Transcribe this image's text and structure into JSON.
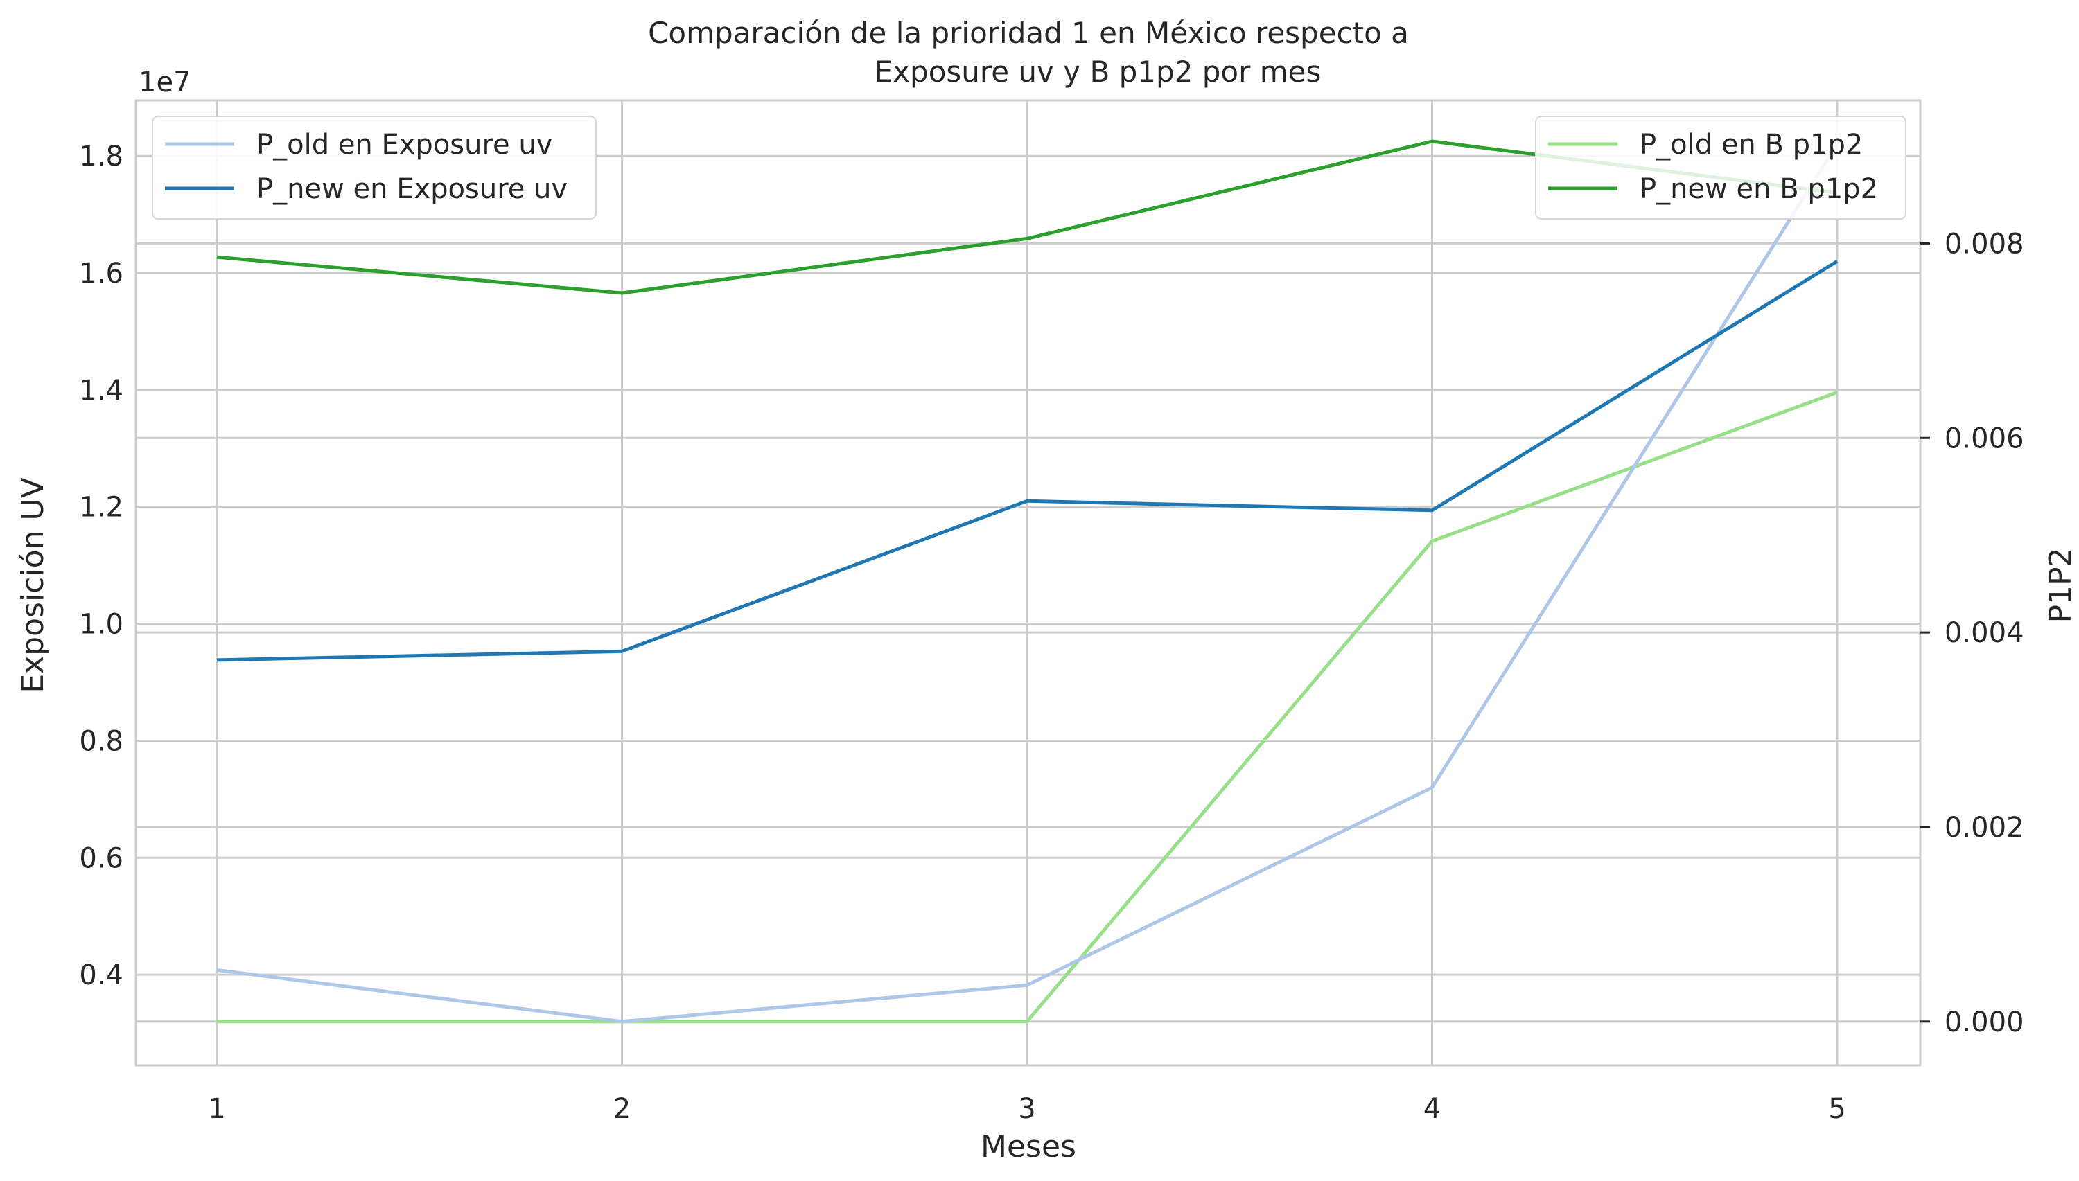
{
  "chart_data": {
    "type": "line",
    "title_line1": "Comparación de la prioridad 1 en México respecto a",
    "title_line2": "Exposure uv y B p1p2 por mes",
    "xlabel": "Meses",
    "ylabel_left": "Exposición UV",
    "ylabel_right": "P1P2",
    "left_offset_label": "1e7",
    "x": [
      1,
      2,
      3,
      4,
      5
    ],
    "x_ticks": [
      "1",
      "2",
      "3",
      "4",
      "5"
    ],
    "ylim_left": [
      2.45,
      18.95
    ],
    "ylim_right": [
      -0.00045,
      0.00947
    ],
    "left_ticks": [
      {
        "v": 0.4,
        "label": "0.4"
      },
      {
        "v": 0.6,
        "label": "0.6"
      },
      {
        "v": 0.8,
        "label": "0.8"
      },
      {
        "v": 1.0,
        "label": "1.0"
      },
      {
        "v": 1.2,
        "label": "1.2"
      },
      {
        "v": 1.4,
        "label": "1.4"
      },
      {
        "v": 1.6,
        "label": "1.6"
      },
      {
        "v": 1.8,
        "label": "1.8"
      }
    ],
    "right_ticks": [
      {
        "v": 0.0,
        "label": "0.000"
      },
      {
        "v": 0.002,
        "label": "0.002"
      },
      {
        "v": 0.004,
        "label": "0.004"
      },
      {
        "v": 0.006,
        "label": "0.006"
      },
      {
        "v": 0.008,
        "label": "0.008"
      }
    ],
    "series_left": [
      {
        "name": "P_old en Exposure uv",
        "color": "#aec7e8",
        "values": [
          4.08,
          3.2,
          3.82,
          7.2,
          18.2
        ]
      },
      {
        "name": "P_new en Exposure uv",
        "color": "#1f77b4",
        "values": [
          9.38,
          9.53,
          12.1,
          11.94,
          16.2
        ]
      }
    ],
    "series_right": [
      {
        "name": "P_old en B p1p2",
        "color": "#98df8a",
        "values": [
          0.0,
          0.0,
          0.0,
          0.00494,
          0.00647
        ]
      },
      {
        "name": "P_new en B p1p2",
        "color": "#2ca02c",
        "values": [
          0.00786,
          0.00749,
          0.00805,
          0.00905,
          0.00852
        ]
      }
    ],
    "grid": true,
    "legend_left_placement": "upper-left",
    "legend_right_placement": "upper-right"
  }
}
